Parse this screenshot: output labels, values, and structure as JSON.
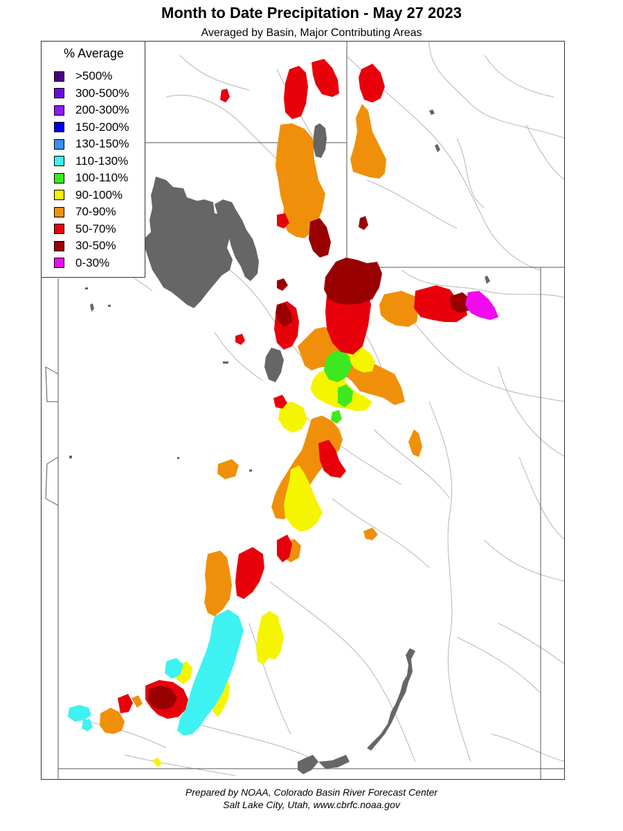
{
  "title": "Month to Date Precipitation - May 27 2023",
  "subtitle": "Averaged by Basin, Major Contributing Areas",
  "legend": {
    "title": "% Average",
    "items": [
      {
        "label": ">500%",
        "color": "#4b0082"
      },
      {
        "label": "300-500%",
        "color": "#6a0ddf"
      },
      {
        "label": "200-300%",
        "color": "#8b1cf2"
      },
      {
        "label": "150-200%",
        "color": "#0000f0"
      },
      {
        "label": "130-150%",
        "color": "#3a8ef5"
      },
      {
        "label": "110-130%",
        "color": "#3ef2f2"
      },
      {
        "label": "100-110%",
        "color": "#3ee81e"
      },
      {
        "label": "90-100%",
        "color": "#f5f500"
      },
      {
        "label": "70-90%",
        "color": "#f0900a"
      },
      {
        "label": "50-70%",
        "color": "#e8000a"
      },
      {
        "label": "30-50%",
        "color": "#990000"
      },
      {
        "label": "0-30%",
        "color": "#f00af0"
      }
    ]
  },
  "footer": {
    "line1": "Prepared by NOAA, Colorado Basin River Forecast Center",
    "line2": "Salt Lake City, Utah, www.cbrfc.noaa.gov"
  },
  "map_colors": {
    "lake": "#666666",
    "boundary": "#555555",
    "river": "#b0b0b0"
  }
}
